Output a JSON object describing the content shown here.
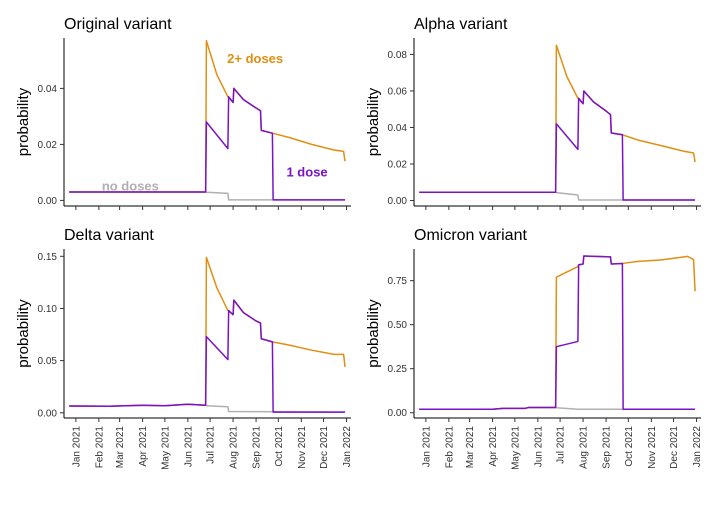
{
  "colors": {
    "none": "#b0b0b0",
    "one": "#7a12c8",
    "two": "#e08f12"
  },
  "chart_data": [
    {
      "type": "line",
      "title": "Original variant",
      "ylabel": "probability",
      "ylim": [
        -0.002,
        0.058
      ],
      "yticks": [
        0.0,
        0.02,
        0.04
      ],
      "ytick_labels": [
        "0.00",
        "0.02",
        "0.04"
      ],
      "x_ticks": [
        "2021-01-01",
        "2021-02-01",
        "2021-03-01",
        "2021-04-01",
        "2021-05-01",
        "2021-06-01",
        "2021-07-01",
        "2021-08-01",
        "2021-09-01",
        "2021-10-01",
        "2021-11-01",
        "2021-12-01",
        "2022-01-01"
      ],
      "x_tick_labels": [
        "Jan 2021",
        "Feb 2021",
        "Mar 2021",
        "Apr 2021",
        "May 2021",
        "Jun 2021",
        "Jul 2021",
        "Aug 2021",
        "Sep 2021",
        "Oct 2021",
        "Nov 2021",
        "Dec 2021",
        "Jan 2022"
      ],
      "show_x_labels": false,
      "annotations": [
        {
          "text": "2+ doses",
          "series": "two",
          "x": "2021-07-24",
          "y": 0.049
        },
        {
          "text": "1 dose",
          "series": "one",
          "x": "2021-10-12",
          "y": 0.0085
        },
        {
          "text": "no doses",
          "series": "none",
          "x": "2021-02-05",
          "y": 0.0035
        }
      ],
      "series": [
        {
          "key": "none",
          "points": [
            [
              "2020-12-23",
              0.003
            ],
            [
              "2021-06-25",
              0.003
            ],
            [
              "2021-06-26",
              0.0029
            ],
            [
              "2021-07-25",
              0.0025
            ],
            [
              "2021-07-26",
              0.0002
            ],
            [
              "2021-12-30",
              0.0002
            ]
          ]
        },
        {
          "key": "two",
          "points": [
            [
              "2020-12-23",
              0.003
            ],
            [
              "2021-06-25",
              0.003
            ],
            [
              "2021-06-26",
              0.057
            ],
            [
              "2021-07-10",
              0.045
            ],
            [
              "2021-07-25",
              0.037
            ],
            [
              "2021-08-01",
              0.035
            ],
            [
              "2021-08-02",
              0.04
            ],
            [
              "2021-08-15",
              0.036
            ],
            [
              "2021-09-01",
              0.033
            ],
            [
              "2021-09-07",
              0.032
            ],
            [
              "2021-09-08",
              0.025
            ],
            [
              "2021-09-23",
              0.024
            ],
            [
              "2021-10-15",
              0.0225
            ],
            [
              "2021-11-15",
              0.02
            ],
            [
              "2021-12-15",
              0.018
            ],
            [
              "2021-12-28",
              0.0175
            ],
            [
              "2021-12-30",
              0.014
            ]
          ]
        },
        {
          "key": "one",
          "points": [
            [
              "2020-12-23",
              0.003
            ],
            [
              "2021-06-25",
              0.003
            ],
            [
              "2021-06-26",
              0.028
            ],
            [
              "2021-07-25",
              0.0185
            ],
            [
              "2021-07-26",
              0.037
            ],
            [
              "2021-08-01",
              0.035
            ],
            [
              "2021-08-02",
              0.04
            ],
            [
              "2021-08-15",
              0.036
            ],
            [
              "2021-09-01",
              0.033
            ],
            [
              "2021-09-07",
              0.032
            ],
            [
              "2021-09-08",
              0.025
            ],
            [
              "2021-09-23",
              0.024
            ],
            [
              "2021-09-24",
              0.0002
            ],
            [
              "2021-12-30",
              0.0002
            ]
          ]
        }
      ]
    },
    {
      "type": "line",
      "title": "Alpha variant",
      "ylabel": "probability",
      "ylim": [
        -0.003,
        0.089
      ],
      "yticks": [
        0.0,
        0.02,
        0.04,
        0.06,
        0.08
      ],
      "ytick_labels": [
        "0.00",
        "0.02",
        "0.04",
        "0.06",
        "0.08"
      ],
      "x_ticks": [
        "2021-01-01",
        "2021-02-01",
        "2021-03-01",
        "2021-04-01",
        "2021-05-01",
        "2021-06-01",
        "2021-07-01",
        "2021-08-01",
        "2021-09-01",
        "2021-10-01",
        "2021-11-01",
        "2021-12-01",
        "2022-01-01"
      ],
      "x_tick_labels": [
        "Jan 2021",
        "Feb 2021",
        "Mar 2021",
        "Apr 2021",
        "May 2021",
        "Jun 2021",
        "Jul 2021",
        "Aug 2021",
        "Sep 2021",
        "Oct 2021",
        "Nov 2021",
        "Dec 2021",
        "Jan 2022"
      ],
      "show_x_labels": false,
      "annotations": [],
      "series": [
        {
          "key": "none",
          "points": [
            [
              "2020-12-23",
              0.0045
            ],
            [
              "2021-06-25",
              0.0045
            ],
            [
              "2021-06-26",
              0.0043
            ],
            [
              "2021-07-25",
              0.003
            ],
            [
              "2021-07-26",
              0.0003
            ],
            [
              "2021-12-30",
              0.0003
            ]
          ]
        },
        {
          "key": "two",
          "points": [
            [
              "2020-12-23",
              0.0045
            ],
            [
              "2021-06-25",
              0.0045
            ],
            [
              "2021-06-26",
              0.085
            ],
            [
              "2021-07-10",
              0.068
            ],
            [
              "2021-07-25",
              0.056
            ],
            [
              "2021-08-01",
              0.053
            ],
            [
              "2021-08-02",
              0.06
            ],
            [
              "2021-08-15",
              0.054
            ],
            [
              "2021-09-01",
              0.049
            ],
            [
              "2021-09-07",
              0.047
            ],
            [
              "2021-09-08",
              0.037
            ],
            [
              "2021-09-23",
              0.036
            ],
            [
              "2021-10-15",
              0.033
            ],
            [
              "2021-11-15",
              0.03
            ],
            [
              "2021-12-15",
              0.027
            ],
            [
              "2021-12-28",
              0.026
            ],
            [
              "2021-12-30",
              0.021
            ]
          ]
        },
        {
          "key": "one",
          "points": [
            [
              "2020-12-23",
              0.0045
            ],
            [
              "2021-06-25",
              0.0045
            ],
            [
              "2021-06-26",
              0.042
            ],
            [
              "2021-07-25",
              0.028
            ],
            [
              "2021-07-26",
              0.056
            ],
            [
              "2021-08-01",
              0.053
            ],
            [
              "2021-08-02",
              0.06
            ],
            [
              "2021-08-15",
              0.054
            ],
            [
              "2021-09-01",
              0.049
            ],
            [
              "2021-09-07",
              0.047
            ],
            [
              "2021-09-08",
              0.037
            ],
            [
              "2021-09-23",
              0.036
            ],
            [
              "2021-09-24",
              0.0003
            ],
            [
              "2021-12-30",
              0.0003
            ]
          ]
        }
      ]
    },
    {
      "type": "line",
      "title": "Delta variant",
      "ylabel": "probability",
      "ylim": [
        -0.005,
        0.157
      ],
      "yticks": [
        0.0,
        0.05,
        0.1,
        0.15
      ],
      "ytick_labels": [
        "0.00",
        "0.05",
        "0.10",
        "0.15"
      ],
      "x_ticks": [
        "2021-01-01",
        "2021-02-01",
        "2021-03-01",
        "2021-04-01",
        "2021-05-01",
        "2021-06-01",
        "2021-07-01",
        "2021-08-01",
        "2021-09-01",
        "2021-10-01",
        "2021-11-01",
        "2021-12-01",
        "2022-01-01"
      ],
      "x_tick_labels": [
        "Jan 2021",
        "Feb 2021",
        "Mar 2021",
        "Apr 2021",
        "May 2021",
        "Jun 2021",
        "Jul 2021",
        "Aug 2021",
        "Sep 2021",
        "Oct 2021",
        "Nov 2021",
        "Dec 2021",
        "Jan 2022"
      ],
      "show_x_labels": true,
      "annotations": [],
      "series": [
        {
          "key": "none",
          "points": [
            [
              "2020-12-23",
              0.0065
            ],
            [
              "2021-02-15",
              0.0063
            ],
            [
              "2021-04-01",
              0.0072
            ],
            [
              "2021-05-01",
              0.0068
            ],
            [
              "2021-06-01",
              0.0082
            ],
            [
              "2021-06-25",
              0.0072
            ],
            [
              "2021-06-26",
              0.0068
            ],
            [
              "2021-07-25",
              0.0058
            ],
            [
              "2021-07-26",
              0.0012
            ],
            [
              "2021-12-30",
              0.0006
            ]
          ]
        },
        {
          "key": "two",
          "points": [
            [
              "2020-12-23",
              0.0065
            ],
            [
              "2021-02-15",
              0.0063
            ],
            [
              "2021-04-01",
              0.0072
            ],
            [
              "2021-05-01",
              0.0068
            ],
            [
              "2021-06-01",
              0.0082
            ],
            [
              "2021-06-25",
              0.0072
            ],
            [
              "2021-06-26",
              0.149
            ],
            [
              "2021-07-10",
              0.12
            ],
            [
              "2021-07-25",
              0.098
            ],
            [
              "2021-08-01",
              0.094
            ],
            [
              "2021-08-02",
              0.108
            ],
            [
              "2021-08-15",
              0.096
            ],
            [
              "2021-09-01",
              0.088
            ],
            [
              "2021-09-07",
              0.086
            ],
            [
              "2021-09-08",
              0.071
            ],
            [
              "2021-09-23",
              0.068
            ],
            [
              "2021-10-15",
              0.065
            ],
            [
              "2021-11-15",
              0.06
            ],
            [
              "2021-12-15",
              0.056
            ],
            [
              "2021-12-28",
              0.056
            ],
            [
              "2021-12-30",
              0.044
            ]
          ]
        },
        {
          "key": "one",
          "points": [
            [
              "2020-12-23",
              0.0065
            ],
            [
              "2021-02-15",
              0.0063
            ],
            [
              "2021-04-01",
              0.0072
            ],
            [
              "2021-05-01",
              0.0068
            ],
            [
              "2021-06-01",
              0.0082
            ],
            [
              "2021-06-25",
              0.0072
            ],
            [
              "2021-06-26",
              0.073
            ],
            [
              "2021-07-25",
              0.051
            ],
            [
              "2021-07-26",
              0.098
            ],
            [
              "2021-08-01",
              0.094
            ],
            [
              "2021-08-02",
              0.108
            ],
            [
              "2021-08-15",
              0.096
            ],
            [
              "2021-09-01",
              0.088
            ],
            [
              "2021-09-07",
              0.086
            ],
            [
              "2021-09-08",
              0.071
            ],
            [
              "2021-09-23",
              0.068
            ],
            [
              "2021-09-24",
              0.0006
            ],
            [
              "2021-12-30",
              0.0006
            ]
          ]
        }
      ]
    },
    {
      "type": "line",
      "title": "Omicron variant",
      "ylabel": "probability",
      "ylim": [
        -0.03,
        0.93
      ],
      "yticks": [
        0.0,
        0.25,
        0.5,
        0.75
      ],
      "ytick_labels": [
        "0.00",
        "0.25",
        "0.50",
        "0.75"
      ],
      "x_ticks": [
        "2021-01-01",
        "2021-02-01",
        "2021-03-01",
        "2021-04-01",
        "2021-05-01",
        "2021-06-01",
        "2021-07-01",
        "2021-08-01",
        "2021-09-01",
        "2021-10-01",
        "2021-11-01",
        "2021-12-01",
        "2022-01-01"
      ],
      "x_tick_labels": [
        "Jan 2021",
        "Feb 2021",
        "Mar 2021",
        "Apr 2021",
        "May 2021",
        "Jun 2021",
        "Jul 2021",
        "Aug 2021",
        "Sep 2021",
        "Oct 2021",
        "Nov 2021",
        "Dec 2021",
        "Jan 2022"
      ],
      "show_x_labels": true,
      "annotations": [],
      "series": [
        {
          "key": "none",
          "points": [
            [
              "2020-12-23",
              0.02
            ],
            [
              "2021-04-01",
              0.02
            ],
            [
              "2021-04-15",
              0.025
            ],
            [
              "2021-05-15",
              0.025
            ],
            [
              "2021-05-20",
              0.03
            ],
            [
              "2021-06-25",
              0.03
            ],
            [
              "2021-06-26",
              0.028
            ],
            [
              "2021-07-25",
              0.02
            ],
            [
              "2021-12-30",
              0.02
            ]
          ]
        },
        {
          "key": "two",
          "points": [
            [
              "2020-12-23",
              0.02
            ],
            [
              "2021-04-01",
              0.02
            ],
            [
              "2021-04-15",
              0.025
            ],
            [
              "2021-05-15",
              0.025
            ],
            [
              "2021-05-20",
              0.03
            ],
            [
              "2021-06-25",
              0.03
            ],
            [
              "2021-06-26",
              0.77
            ],
            [
              "2021-07-25",
              0.83
            ],
            [
              "2021-07-26",
              0.84
            ],
            [
              "2021-08-01",
              0.845
            ],
            [
              "2021-08-02",
              0.89
            ],
            [
              "2021-09-07",
              0.885
            ],
            [
              "2021-09-08",
              0.845
            ],
            [
              "2021-09-23",
              0.848
            ],
            [
              "2021-10-15",
              0.86
            ],
            [
              "2021-11-15",
              0.868
            ],
            [
              "2021-12-20",
              0.888
            ],
            [
              "2021-12-28",
              0.87
            ],
            [
              "2021-12-30",
              0.69
            ]
          ]
        },
        {
          "key": "one",
          "points": [
            [
              "2020-12-23",
              0.02
            ],
            [
              "2021-04-01",
              0.02
            ],
            [
              "2021-04-15",
              0.025
            ],
            [
              "2021-05-15",
              0.025
            ],
            [
              "2021-05-20",
              0.03
            ],
            [
              "2021-06-25",
              0.03
            ],
            [
              "2021-06-26",
              0.375
            ],
            [
              "2021-07-25",
              0.405
            ],
            [
              "2021-07-26",
              0.84
            ],
            [
              "2021-08-01",
              0.845
            ],
            [
              "2021-08-02",
              0.89
            ],
            [
              "2021-09-07",
              0.885
            ],
            [
              "2021-09-08",
              0.845
            ],
            [
              "2021-09-23",
              0.848
            ],
            [
              "2021-09-24",
              0.02
            ],
            [
              "2021-12-30",
              0.02
            ]
          ]
        }
      ]
    }
  ]
}
